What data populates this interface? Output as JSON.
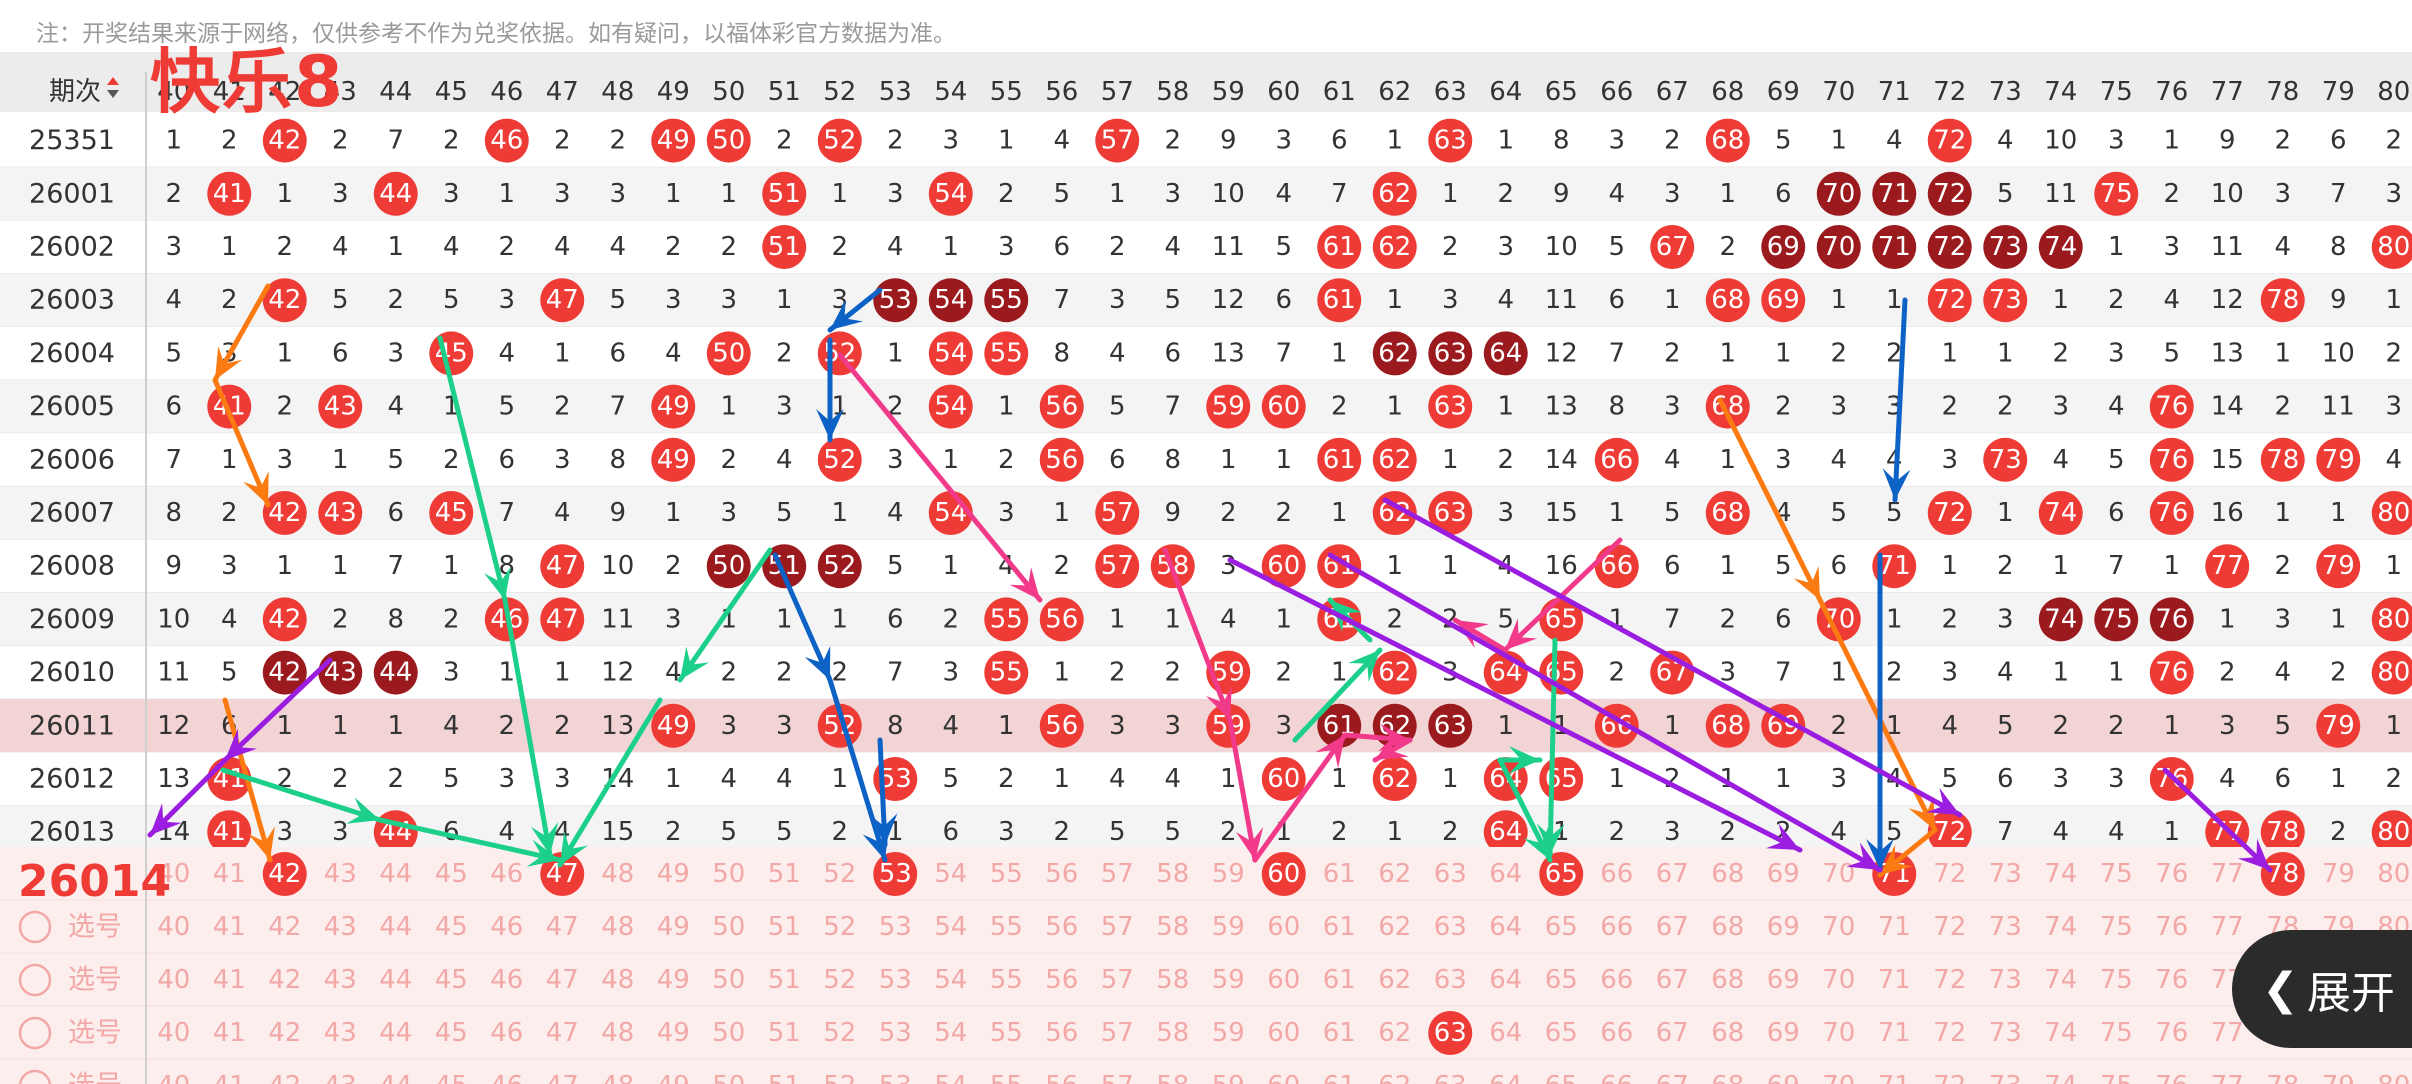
{
  "app_title": "快乐8",
  "notice": "注：开奖结果来源于网络，仅供参考不作为兑奖依据。如有疑问，以福体彩官方数据为准。",
  "header": {
    "period_label": "期次",
    "sort_icon": "sort-updown-icon",
    "columns": [
      "40",
      "41",
      "42",
      "43",
      "44",
      "45",
      "46",
      "47",
      "48",
      "49",
      "50",
      "51",
      "52",
      "53",
      "54",
      "55",
      "56",
      "57",
      "58",
      "59",
      "60",
      "61",
      "62",
      "63",
      "64",
      "65",
      "66",
      "67",
      "68",
      "69",
      "70",
      "71",
      "72",
      "73",
      "74",
      "75",
      "76",
      "77",
      "78",
      "79",
      "80"
    ]
  },
  "rows": [
    {
      "period": "25351",
      "cells": [
        1,
        2,
        42,
        2,
        7,
        2,
        46,
        2,
        2,
        49,
        50,
        2,
        52,
        2,
        3,
        1,
        4,
        57,
        2,
        9,
        3,
        6,
        1,
        63,
        1,
        8,
        3,
        2,
        68,
        5,
        1,
        4,
        72,
        4,
        10,
        3,
        1,
        9,
        2,
        6,
        2
      ],
      "dark": []
    },
    {
      "period": "26001",
      "cells": [
        2,
        41,
        1,
        3,
        44,
        3,
        1,
        3,
        3,
        1,
        1,
        51,
        1,
        3,
        54,
        2,
        5,
        1,
        3,
        10,
        4,
        7,
        62,
        1,
        2,
        9,
        4,
        3,
        1,
        6,
        70,
        71,
        72,
        5,
        11,
        75,
        2,
        10,
        3,
        7,
        3
      ],
      "dark": [
        70,
        71,
        72
      ]
    },
    {
      "period": "26002",
      "cells": [
        3,
        1,
        2,
        4,
        1,
        4,
        2,
        4,
        4,
        2,
        2,
        51,
        2,
        4,
        1,
        3,
        6,
        2,
        4,
        11,
        5,
        61,
        62,
        2,
        3,
        10,
        5,
        67,
        2,
        69,
        70,
        71,
        72,
        73,
        74,
        1,
        3,
        11,
        4,
        8,
        80
      ],
      "dark": [
        69,
        70,
        71,
        72,
        73,
        74
      ]
    },
    {
      "period": "26003",
      "cells": [
        4,
        2,
        42,
        5,
        2,
        5,
        3,
        47,
        5,
        3,
        3,
        1,
        3,
        53,
        54,
        55,
        7,
        3,
        5,
        12,
        6,
        61,
        1,
        3,
        4,
        11,
        6,
        1,
        68,
        69,
        1,
        1,
        72,
        73,
        1,
        2,
        4,
        12,
        78,
        9,
        1
      ],
      "dark": [
        53,
        54,
        55
      ]
    },
    {
      "period": "26004",
      "cells": [
        5,
        3,
        1,
        6,
        3,
        45,
        4,
        1,
        6,
        4,
        50,
        2,
        52,
        1,
        54,
        55,
        8,
        4,
        6,
        13,
        7,
        1,
        62,
        63,
        64,
        12,
        7,
        2,
        1,
        1,
        2,
        2,
        1,
        1,
        2,
        3,
        5,
        13,
        1,
        10,
        2
      ],
      "dark": [
        62,
        63,
        64
      ]
    },
    {
      "period": "26005",
      "cells": [
        6,
        41,
        2,
        43,
        4,
        1,
        5,
        2,
        7,
        49,
        1,
        3,
        1,
        2,
        54,
        1,
        56,
        5,
        7,
        59,
        60,
        2,
        1,
        63,
        1,
        13,
        8,
        3,
        68,
        2,
        3,
        3,
        2,
        2,
        3,
        4,
        76,
        14,
        2,
        11,
        3
      ],
      "dark": []
    },
    {
      "period": "26006",
      "cells": [
        7,
        1,
        3,
        1,
        5,
        2,
        6,
        3,
        8,
        49,
        2,
        4,
        52,
        3,
        1,
        2,
        56,
        6,
        8,
        1,
        1,
        61,
        62,
        1,
        2,
        14,
        66,
        4,
        1,
        3,
        4,
        4,
        3,
        73,
        4,
        5,
        76,
        15,
        78,
        79,
        4
      ],
      "dark": []
    },
    {
      "period": "26007",
      "cells": [
        8,
        2,
        42,
        43,
        6,
        45,
        7,
        4,
        9,
        1,
        3,
        5,
        1,
        4,
        54,
        3,
        1,
        57,
        9,
        2,
        2,
        1,
        62,
        63,
        3,
        15,
        1,
        5,
        68,
        4,
        5,
        5,
        72,
        1,
        74,
        6,
        76,
        16,
        1,
        1,
        80
      ],
      "dark": []
    },
    {
      "period": "26008",
      "cells": [
        9,
        3,
        1,
        1,
        7,
        1,
        8,
        47,
        10,
        2,
        50,
        51,
        52,
        5,
        1,
        4,
        2,
        57,
        58,
        3,
        60,
        61,
        1,
        1,
        4,
        16,
        66,
        6,
        1,
        5,
        6,
        71,
        1,
        2,
        1,
        7,
        1,
        77,
        2,
        79,
        1
      ],
      "dark": [
        50,
        51,
        52
      ]
    },
    {
      "period": "26009",
      "cells": [
        10,
        4,
        42,
        2,
        8,
        2,
        46,
        47,
        11,
        3,
        1,
        1,
        1,
        6,
        2,
        55,
        56,
        1,
        1,
        4,
        1,
        61,
        2,
        2,
        5,
        65,
        1,
        7,
        2,
        6,
        70,
        1,
        2,
        3,
        74,
        75,
        76,
        1,
        3,
        1,
        80
      ],
      "dark": [
        74,
        75,
        76
      ]
    },
    {
      "period": "26010",
      "cells": [
        11,
        5,
        42,
        43,
        44,
        3,
        1,
        1,
        12,
        4,
        2,
        2,
        2,
        7,
        3,
        55,
        1,
        2,
        2,
        59,
        2,
        1,
        62,
        3,
        64,
        65,
        2,
        67,
        3,
        7,
        1,
        2,
        3,
        4,
        1,
        1,
        76,
        2,
        4,
        2,
        80
      ],
      "dark": [
        42,
        43,
        44
      ]
    },
    {
      "period": "26011",
      "cells": [
        12,
        6,
        1,
        1,
        1,
        4,
        2,
        2,
        13,
        49,
        3,
        3,
        52,
        8,
        4,
        1,
        56,
        3,
        3,
        59,
        3,
        61,
        62,
        63,
        1,
        1,
        66,
        1,
        68,
        69,
        2,
        1,
        4,
        5,
        2,
        2,
        1,
        3,
        5,
        79,
        1
      ],
      "dark": [
        61,
        62,
        63
      ]
    },
    {
      "period": "26012",
      "cells": [
        13,
        41,
        2,
        2,
        2,
        5,
        3,
        3,
        14,
        1,
        4,
        4,
        1,
        53,
        5,
        2,
        1,
        4,
        4,
        1,
        60,
        1,
        62,
        1,
        64,
        65,
        1,
        2,
        1,
        1,
        3,
        4,
        5,
        6,
        3,
        3,
        76,
        4,
        6,
        1,
        2
      ],
      "dark": []
    },
    {
      "period": "26013",
      "cells": [
        14,
        41,
        3,
        3,
        44,
        6,
        4,
        4,
        15,
        2,
        5,
        5,
        2,
        1,
        6,
        3,
        2,
        5,
        5,
        2,
        1,
        2,
        1,
        2,
        64,
        1,
        2,
        3,
        2,
        2,
        4,
        5,
        72,
        7,
        4,
        4,
        1,
        77,
        78,
        2,
        80
      ],
      "dark": []
    }
  ],
  "draw_label": "26014",
  "select_label": "选号",
  "select_rows": [
    [
      42,
      47,
      53,
      60,
      65,
      71,
      78
    ],
    [],
    [],
    [
      63
    ],
    []
  ],
  "expand_button": {
    "label": "展开",
    "icon": "chevron-left-icon"
  },
  "colors": {
    "red": "#ef3b35",
    "dark_red": "#9b1a1e",
    "pale_red": "#f2a8a6",
    "highlight_row": "#f3d4d5",
    "orange": "#fb7b12",
    "green": "#1ccf8a",
    "blue": "#0d62c6",
    "pink": "#f23a8a",
    "purple": "#9a1de0"
  },
  "chart_data": {
    "type": "table",
    "annotations": "hand-drawn trend arrows over the lottery number distribution"
  }
}
